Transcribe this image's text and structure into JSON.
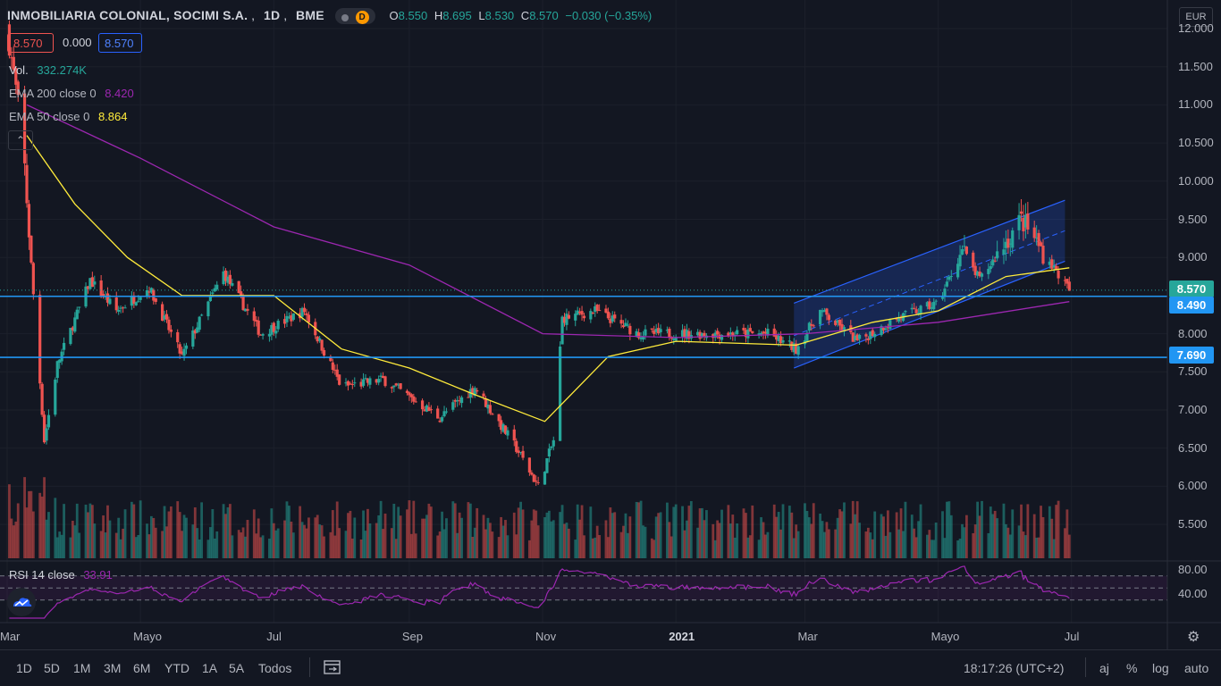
{
  "header": {
    "symbol": "INMOBILIARIA COLONIAL, SOCIMI S.A.",
    "interval": "1D",
    "exchange": "BME",
    "status_letter": "D",
    "ohlc": {
      "o_label": "O",
      "o": "8.550",
      "h_label": "H",
      "h": "8.695",
      "l_label": "L",
      "l": "8.530",
      "c_label": "C",
      "c": "8.570",
      "change": "−0.030 (−0.35%)"
    },
    "bid": "8.570",
    "spread": "0.000",
    "ask": "8.570"
  },
  "indicators": {
    "volume": {
      "label": "Vol.",
      "value": "332.274K"
    },
    "ema200": {
      "label": "EMA 200 close 0",
      "value": "8.420",
      "color": "#9c27b0"
    },
    "ema50": {
      "label": "EMA 50 close 0",
      "value": "8.864",
      "color": "#ffeb3b"
    },
    "rsi": {
      "label": "RSI 14 close",
      "value": "33.91",
      "color": "#9c27b0"
    }
  },
  "price_axis": {
    "currency": "EUR",
    "ticks": [
      "12.000",
      "11.500",
      "11.000",
      "10.500",
      "10.000",
      "9.500",
      "9.000",
      "8.500",
      "8.000",
      "7.500",
      "7.000",
      "6.500",
      "6.000",
      "5.500"
    ],
    "last_price_label": "8.570",
    "level_labels": [
      "8.490",
      "7.690"
    ]
  },
  "rsi_axis": {
    "ticks": [
      "80.00",
      "40.00"
    ]
  },
  "time_axis": {
    "ticks": [
      "Mar",
      "Mayo",
      "Jul",
      "Sep",
      "Nov",
      "2021",
      "Mar",
      "Mayo",
      "Jul"
    ]
  },
  "bottom_bar": {
    "ranges": [
      "1D",
      "5D",
      "1M",
      "3M",
      "6M",
      "YTD",
      "1A",
      "5A",
      "Todos"
    ],
    "clock": "18:17:26 (UTC+2)",
    "toggles": [
      "aj",
      "%",
      "log",
      "auto"
    ]
  },
  "colors": {
    "up": "#26a69a",
    "down": "#ef5350",
    "level": "#2196f3",
    "channel": "#2962ff",
    "ema50": "#ffeb3b",
    "ema200": "#9c27b0",
    "background": "#131722"
  },
  "chart_data": {
    "type": "candlestick",
    "title": "INMOBILIARIA COLONIAL, SOCIMI S.A., 1D, BME",
    "x_range": [
      "2020-03-01",
      "2021-07-15"
    ],
    "ylim": [
      5.2,
      12.1
    ],
    "key_points": [
      {
        "date": "2020-03-01",
        "close": 12.0
      },
      {
        "date": "2020-03-08",
        "close": 10.6
      },
      {
        "date": "2020-03-12",
        "close": 8.9
      },
      {
        "date": "2020-03-18",
        "close": 6.6
      },
      {
        "date": "2020-03-24",
        "close": 7.6
      },
      {
        "date": "2020-04-08",
        "close": 8.7
      },
      {
        "date": "2020-04-20",
        "close": 8.3
      },
      {
        "date": "2020-05-05",
        "close": 8.6
      },
      {
        "date": "2020-05-20",
        "close": 7.7
      },
      {
        "date": "2020-06-08",
        "close": 8.8
      },
      {
        "date": "2020-06-25",
        "close": 8.0
      },
      {
        "date": "2020-07-15",
        "close": 8.3
      },
      {
        "date": "2020-08-01",
        "close": 7.3
      },
      {
        "date": "2020-08-20",
        "close": 7.4
      },
      {
        "date": "2020-09-15",
        "close": 6.9
      },
      {
        "date": "2020-10-01",
        "close": 7.3
      },
      {
        "date": "2020-10-20",
        "close": 6.5
      },
      {
        "date": "2020-10-30",
        "close": 6.0
      },
      {
        "date": "2020-11-06",
        "close": 6.6
      },
      {
        "date": "2020-11-10",
        "close": 8.2
      },
      {
        "date": "2020-11-25",
        "close": 8.3
      },
      {
        "date": "2020-12-15",
        "close": 8.0
      },
      {
        "date": "2021-01-15",
        "close": 8.0
      },
      {
        "date": "2021-02-12",
        "close": 8.0
      },
      {
        "date": "2021-02-25",
        "close": 7.8
      },
      {
        "date": "2021-03-08",
        "close": 8.3
      },
      {
        "date": "2021-03-25",
        "close": 7.9
      },
      {
        "date": "2021-04-12",
        "close": 8.2
      },
      {
        "date": "2021-05-01",
        "close": 8.4
      },
      {
        "date": "2021-05-12",
        "close": 9.1
      },
      {
        "date": "2021-05-20",
        "close": 8.7
      },
      {
        "date": "2021-06-08",
        "close": 9.5
      },
      {
        "date": "2021-06-15",
        "close": 9.2
      },
      {
        "date": "2021-06-22",
        "close": 8.9
      },
      {
        "date": "2021-06-30",
        "close": 8.57
      }
    ],
    "ema50_points": [
      {
        "date": "2020-03-10",
        "value": 10.6
      },
      {
        "date": "2020-04-01",
        "value": 9.7
      },
      {
        "date": "2020-04-25",
        "value": 9.0
      },
      {
        "date": "2020-05-20",
        "value": 8.5
      },
      {
        "date": "2020-07-01",
        "value": 8.5
      },
      {
        "date": "2020-08-01",
        "value": 7.8
      },
      {
        "date": "2020-09-01",
        "value": 7.55
      },
      {
        "date": "2020-10-01",
        "value": 7.2
      },
      {
        "date": "2020-11-02",
        "value": 6.85
      },
      {
        "date": "2020-12-01",
        "value": 7.7
      },
      {
        "date": "2021-01-01",
        "value": 7.9
      },
      {
        "date": "2021-02-25",
        "value": 7.85
      },
      {
        "date": "2021-04-01",
        "value": 8.15
      },
      {
        "date": "2021-05-01",
        "value": 8.3
      },
      {
        "date": "2021-06-01",
        "value": 8.75
      },
      {
        "date": "2021-06-30",
        "value": 8.864
      }
    ],
    "ema200_points": [
      {
        "date": "2020-03-10",
        "value": 11.0
      },
      {
        "date": "2020-05-01",
        "value": 10.3
      },
      {
        "date": "2020-07-01",
        "value": 9.4
      },
      {
        "date": "2020-09-01",
        "value": 8.9
      },
      {
        "date": "2020-11-01",
        "value": 8.0
      },
      {
        "date": "2021-01-01",
        "value": 7.95
      },
      {
        "date": "2021-03-01",
        "value": 8.0
      },
      {
        "date": "2021-05-01",
        "value": 8.15
      },
      {
        "date": "2021-06-30",
        "value": 8.42
      }
    ],
    "horizontal_levels": [
      8.49,
      7.69
    ],
    "regression_channel": {
      "start_date": "2021-02-24",
      "end_date": "2021-06-28",
      "start_low": 7.55,
      "start_high": 8.4,
      "end_low": 8.95,
      "end_high": 9.75
    },
    "volume_series": "daily volume bars colored by candle direction",
    "rsi": {
      "period": 14,
      "last": 33.91,
      "bands": [
        70,
        50,
        30
      ],
      "ylim": [
        20,
        90
      ]
    }
  }
}
